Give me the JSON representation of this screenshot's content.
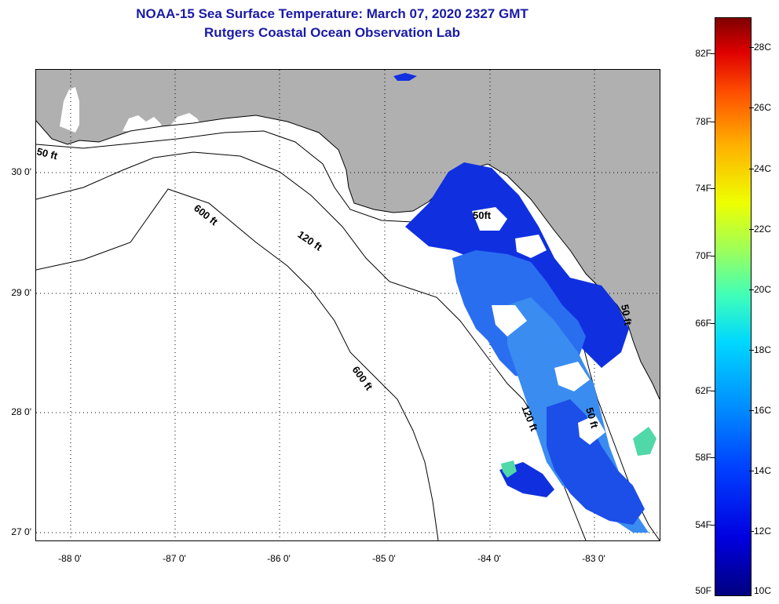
{
  "title": {
    "line1": "NOAA-15 Sea Surface Temperature:  March 07, 2020 2327 GMT",
    "line2": "Rutgers Coastal Ocean Observation Lab"
  },
  "axes": {
    "latitude_labels": [
      "30 0'",
      "29 0'",
      "28 0'",
      "27 0'"
    ],
    "longitude_labels": [
      "-88 0'",
      "-87 0'",
      "-86 0'",
      "-85 0'",
      "-84 0'",
      "-83 0'"
    ]
  },
  "contours": {
    "label_50ft": "50 ft",
    "label_120ft": "120 ft",
    "label_600ft": "600 ft",
    "label_50ft_east": "50 ft",
    "label_50ft_tb": "50 ft",
    "label_50ft_north": "50ft",
    "label_120ft_south": "120 ft",
    "label_600ft_south": "600 ft"
  },
  "colorbar": {
    "fahrenheit_labels": [
      "82F",
      "78F",
      "74F",
      "70F",
      "66F",
      "62F",
      "58F",
      "54F",
      "50F"
    ],
    "celsius_labels": [
      "28C",
      "26C",
      "24C",
      "22C",
      "20C",
      "18C",
      "16C",
      "14C",
      "12C",
      "10C"
    ]
  },
  "colors": {
    "land": "#b0b0b0",
    "water": "#ffffff",
    "title": "#1a1aa6",
    "sst_cold": "#1030e0",
    "sst_mid": "#3a8cf0"
  }
}
